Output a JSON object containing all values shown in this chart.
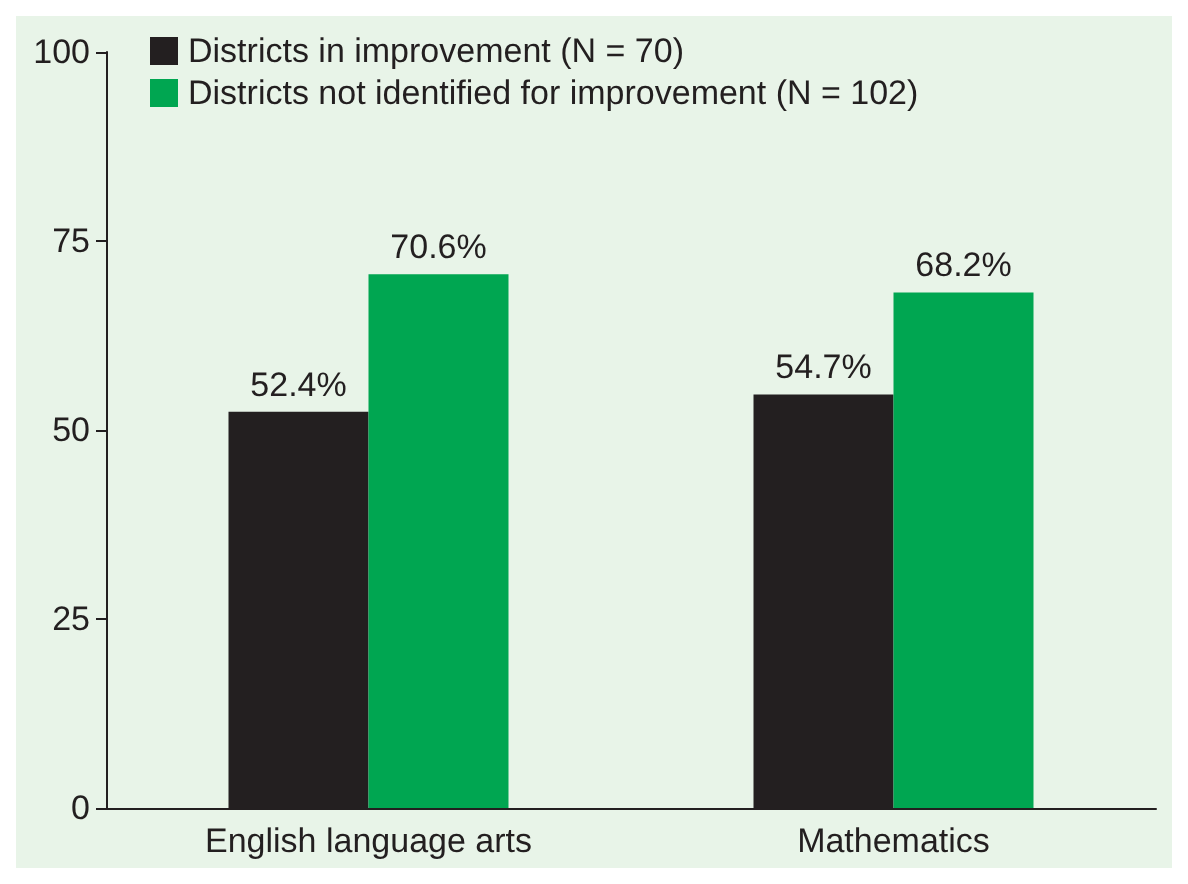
{
  "chart_data": {
    "type": "bar",
    "categories": [
      "English language arts",
      "Mathematics"
    ],
    "series": [
      {
        "name": "Districts in improvement (N = 70)",
        "color": "#231f20",
        "values": [
          52.4,
          54.7
        ],
        "value_labels": [
          "52.4%",
          "54.7%"
        ]
      },
      {
        "name": "Districts not identified for improvement (N = 102)",
        "color": "#00a651",
        "values": [
          70.6,
          68.2
        ],
        "value_labels": [
          "70.6%",
          "68.2%"
        ]
      }
    ],
    "ylim": [
      0,
      100
    ],
    "yticks": [
      0,
      25,
      50,
      75,
      100
    ],
    "grid": false,
    "legend": "top left"
  }
}
